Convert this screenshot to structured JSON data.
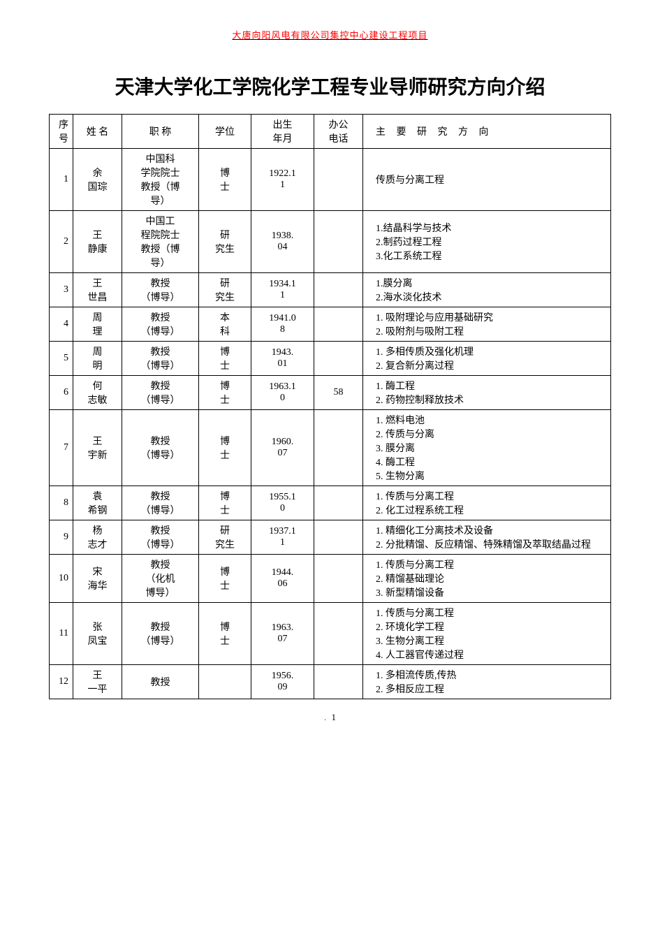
{
  "header_note": "大唐向阳风电有限公司集控中心建设工程项目",
  "page_title": "天津大学化工学院化学工程专业导师研究方向介绍",
  "columns": {
    "seq": "序号",
    "name": "姓 名",
    "title": "职  称",
    "degree": "学位",
    "birth": "出生\n年月",
    "phone": "办公\n电话",
    "research": "主 要 研 究 方 向"
  },
  "rows": [
    {
      "seq": "1",
      "name": "余\n国琮",
      "title": "中国科\n学院院士\n教授（博\n导）",
      "degree": "博\n士",
      "birth": "1922.1\n1",
      "phone": "",
      "research": [
        "传质与分离工程"
      ]
    },
    {
      "seq": "2",
      "name": "王\n静康",
      "title": "中国工\n程院院士\n教授（博\n导）",
      "degree": "研\n究生",
      "birth": "1938.\n04",
      "phone": "",
      "research": [
        "1.结晶科学与技术",
        "2.制药过程工程",
        "3.化工系统工程"
      ]
    },
    {
      "seq": "3",
      "name": "王\n世昌",
      "title": "教授\n（博导）",
      "degree": "研\n究生",
      "birth": "1934.1\n1",
      "phone": "",
      "research": [
        "1.膜分离",
        "2.海水淡化技术"
      ]
    },
    {
      "seq": "4",
      "name": "周\n理",
      "title": "教授\n（博导）",
      "degree": "本\n科",
      "birth": "1941.0\n8",
      "phone": "",
      "research": [
        "1. 吸附理论与应用基础研究",
        "2. 吸附剂与吸附工程"
      ]
    },
    {
      "seq": "5",
      "name": "周\n明",
      "title": "教授\n（博导）",
      "degree": "博\n士",
      "birth": "1943.\n01",
      "phone": "",
      "research": [
        "1. 多相传质及强化机理",
        "2. 复合新分离过程"
      ]
    },
    {
      "seq": "6",
      "name": "何\n志敏",
      "title": "教授\n（博导）",
      "degree": "博\n士",
      "birth": "1963.1\n0",
      "phone": "58",
      "research": [
        "1. 酶工程",
        "2. 药物控制释放技术"
      ]
    },
    {
      "seq": "7",
      "name": "王\n宇新",
      "title": "教授\n（博导）",
      "degree": "博\n士",
      "birth": "1960.\n07",
      "phone": "",
      "research": [
        "1. 燃料电池",
        "2. 传质与分离",
        "3. 膜分离",
        "4. 酶工程",
        "5. 生物分离"
      ]
    },
    {
      "seq": "8",
      "name": "袁\n希钢",
      "title": "教授\n（博导）",
      "degree": "博\n士",
      "birth": "1955.1\n0",
      "phone": "",
      "research": [
        "1. 传质与分离工程",
        "2. 化工过程系统工程"
      ]
    },
    {
      "seq": "9",
      "name": "杨\n志才",
      "title": "教授\n（博导）",
      "degree": "研\n究生",
      "birth": "1937.1\n1",
      "phone": "",
      "research": [
        "1. 精细化工分离技术及设备",
        "2. 分批精馏、反应精馏、特殊精馏及萃取结晶过程"
      ]
    },
    {
      "seq": "10",
      "name": "宋\n海华",
      "title": "教授\n（化机\n博导）",
      "degree": "博\n士",
      "birth": "1944.\n06",
      "phone": "",
      "research": [
        "1. 传质与分离工程",
        "2. 精馏基础理论",
        "3. 新型精馏设备"
      ]
    },
    {
      "seq": "11",
      "name": "张\n凤宝",
      "title": "教授\n（博导）",
      "degree": "博\n士",
      "birth": "1963.\n07",
      "phone": "",
      "research": [
        "1.   传质与分离工程",
        "2.   环境化学工程",
        "3.   生物分离工程",
        "4.   人工器官传递过程"
      ]
    },
    {
      "seq": "12",
      "name": "王\n一平",
      "title": "教授",
      "degree": "",
      "birth": "1956.\n09",
      "phone": "",
      "research": [
        "1. 多相流传质,传热",
        "2. 多相反应工程"
      ]
    }
  ],
  "footer_page": "1",
  "colors": {
    "accent": "#ff0000",
    "border": "#000000",
    "text": "#000000",
    "bg": "#ffffff"
  }
}
